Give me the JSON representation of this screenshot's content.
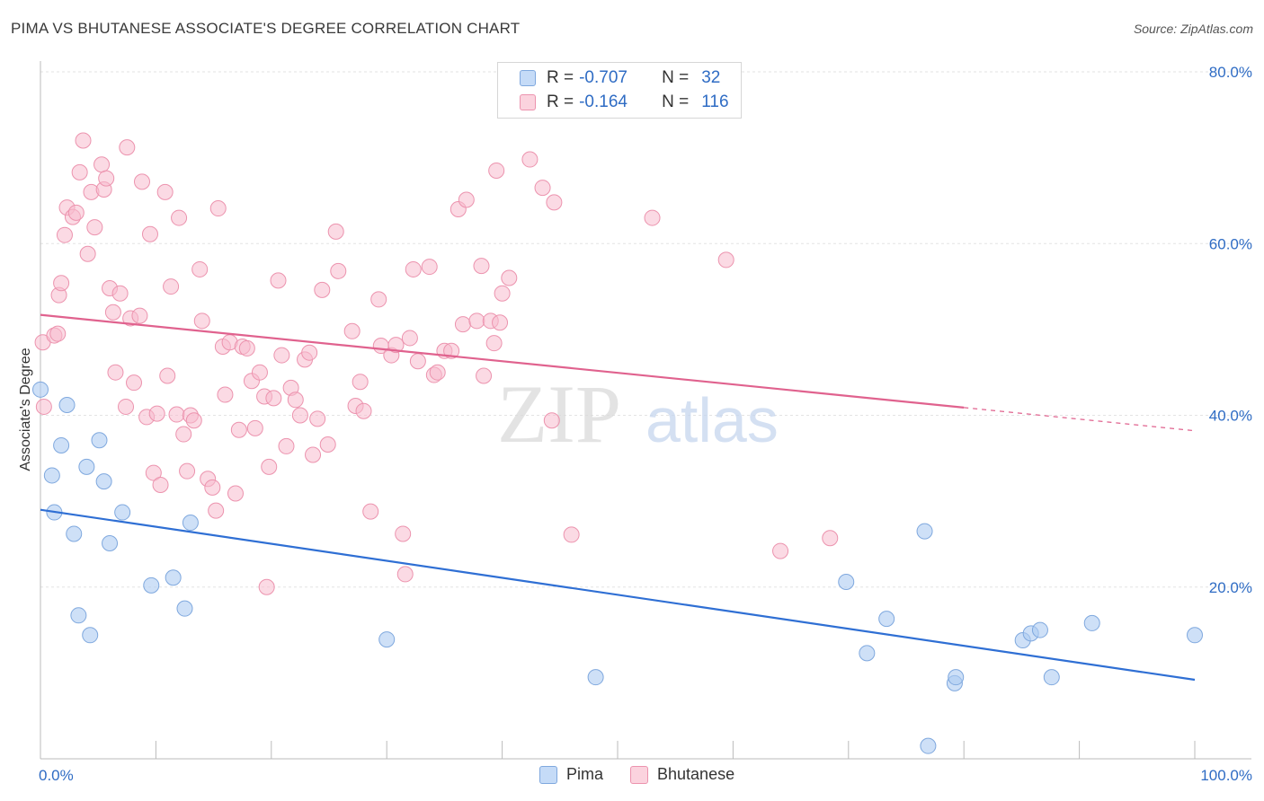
{
  "title": "PIMA VS BHUTANESE ASSOCIATE'S DEGREE CORRELATION CHART",
  "source": "Source: ZipAtlas.com",
  "watermark": {
    "zip": "ZIP",
    "atlas": "atlas"
  },
  "legend": {
    "rows": [
      {
        "r_label": "R =",
        "r_value": "-0.707",
        "n_label": "N =",
        "n_value": "32",
        "color": "#aecbf2"
      },
      {
        "r_label": "R =",
        "r_value": "-0.164",
        "n_label": "N =",
        "n_value": "116",
        "color": "#f7bccd"
      }
    ]
  },
  "bottom_legend": {
    "pima": "Pima",
    "bhutanese": "Bhutanese"
  },
  "colors": {
    "pima_fill": "#aecbf2",
    "pima_stroke": "#7fa8de",
    "pima_line": "#2f6fd4",
    "bhut_fill": "#f7bccd",
    "bhut_stroke": "#ec93ae",
    "bhut_line": "#e0628e",
    "grid": "#e3e3e3",
    "tick_label": "#2f6cc4"
  },
  "chart_data": {
    "type": "scatter",
    "title": "PIMA VS BHUTANESE ASSOCIATE'S DEGREE CORRELATION CHART",
    "xlabel": "",
    "ylabel": "Associate's Degree",
    "xlim": [
      0,
      100
    ],
    "ylim": [
      0,
      80
    ],
    "x_tick_labels": [
      "0.0%",
      "100.0%"
    ],
    "y_ticks": [
      20,
      40,
      60,
      80
    ],
    "y_tick_labels": [
      "20.0%",
      "40.0%",
      "60.0%",
      "80.0%"
    ],
    "grid": true,
    "series": [
      {
        "name": "Pima",
        "r": -0.707,
        "n": 32,
        "trend": {
          "x0": 0,
          "y0": 29.0,
          "x1": 100,
          "y1": 9.2
        },
        "points": [
          [
            0.0,
            43.0
          ],
          [
            1.0,
            33.0
          ],
          [
            1.2,
            28.7
          ],
          [
            1.8,
            36.5
          ],
          [
            2.3,
            41.2
          ],
          [
            2.9,
            26.2
          ],
          [
            3.3,
            16.7
          ],
          [
            4.0,
            34.0
          ],
          [
            4.3,
            14.4
          ],
          [
            5.1,
            37.1
          ],
          [
            5.5,
            32.3
          ],
          [
            6.0,
            25.1
          ],
          [
            7.1,
            28.7
          ],
          [
            9.6,
            20.2
          ],
          [
            11.5,
            21.1
          ],
          [
            12.5,
            17.5
          ],
          [
            13.0,
            27.5
          ],
          [
            30.0,
            13.9
          ],
          [
            48.1,
            9.5
          ],
          [
            69.8,
            20.6
          ],
          [
            71.6,
            12.3
          ],
          [
            73.3,
            16.3
          ],
          [
            76.6,
            26.5
          ],
          [
            76.9,
            1.5
          ],
          [
            79.2,
            8.8
          ],
          [
            79.3,
            9.5
          ],
          [
            85.1,
            13.8
          ],
          [
            85.8,
            14.6
          ],
          [
            86.6,
            15.0
          ],
          [
            87.6,
            9.5
          ],
          [
            91.1,
            15.8
          ],
          [
            100.0,
            14.4
          ]
        ]
      },
      {
        "name": "Bhutanese",
        "r": -0.164,
        "n": 116,
        "trend": {
          "x0": 0,
          "y0": 51.7,
          "x1": 80,
          "y1": 40.9,
          "dash_x1": 100,
          "dash_y1": 38.2
        },
        "points": [
          [
            0.2,
            48.5
          ],
          [
            0.3,
            41.0
          ],
          [
            1.2,
            49.3
          ],
          [
            1.5,
            49.5
          ],
          [
            1.6,
            54.0
          ],
          [
            1.8,
            55.4
          ],
          [
            2.1,
            61.0
          ],
          [
            2.3,
            64.2
          ],
          [
            2.8,
            63.1
          ],
          [
            3.1,
            63.6
          ],
          [
            3.4,
            68.3
          ],
          [
            3.7,
            72.0
          ],
          [
            4.1,
            58.8
          ],
          [
            4.4,
            66.0
          ],
          [
            4.7,
            61.9
          ],
          [
            5.3,
            69.2
          ],
          [
            5.5,
            66.3
          ],
          [
            5.7,
            67.6
          ],
          [
            6.0,
            54.8
          ],
          [
            6.3,
            52.0
          ],
          [
            6.5,
            45.0
          ],
          [
            6.9,
            54.2
          ],
          [
            7.4,
            41.0
          ],
          [
            7.5,
            71.2
          ],
          [
            7.8,
            51.3
          ],
          [
            8.1,
            43.8
          ],
          [
            8.6,
            51.6
          ],
          [
            8.8,
            67.2
          ],
          [
            9.2,
            39.8
          ],
          [
            9.5,
            61.1
          ],
          [
            9.8,
            33.3
          ],
          [
            10.1,
            40.2
          ],
          [
            10.4,
            31.9
          ],
          [
            10.8,
            66.0
          ],
          [
            11.0,
            44.6
          ],
          [
            11.3,
            55.0
          ],
          [
            11.8,
            40.1
          ],
          [
            12.0,
            63.0
          ],
          [
            12.4,
            37.8
          ],
          [
            12.7,
            33.5
          ],
          [
            13.0,
            40.0
          ],
          [
            13.3,
            39.4
          ],
          [
            13.8,
            57.0
          ],
          [
            14.0,
            51.0
          ],
          [
            14.5,
            32.6
          ],
          [
            14.9,
            31.6
          ],
          [
            15.2,
            28.9
          ],
          [
            15.4,
            64.1
          ],
          [
            15.8,
            48.0
          ],
          [
            16.0,
            42.4
          ],
          [
            16.4,
            48.5
          ],
          [
            16.9,
            30.9
          ],
          [
            17.2,
            38.3
          ],
          [
            17.5,
            48.0
          ],
          [
            17.9,
            47.8
          ],
          [
            18.3,
            44.0
          ],
          [
            18.6,
            38.5
          ],
          [
            19.0,
            45.0
          ],
          [
            19.4,
            42.2
          ],
          [
            19.6,
            20.0
          ],
          [
            19.8,
            34.0
          ],
          [
            20.2,
            42.0
          ],
          [
            20.6,
            55.7
          ],
          [
            20.9,
            47.0
          ],
          [
            21.3,
            36.4
          ],
          [
            21.7,
            43.2
          ],
          [
            22.1,
            41.8
          ],
          [
            22.5,
            40.0
          ],
          [
            22.9,
            46.5
          ],
          [
            23.3,
            47.3
          ],
          [
            23.6,
            35.4
          ],
          [
            24.0,
            39.6
          ],
          [
            24.4,
            54.6
          ],
          [
            24.9,
            36.6
          ],
          [
            25.8,
            56.8
          ],
          [
            25.6,
            61.4
          ],
          [
            27.0,
            49.8
          ],
          [
            27.3,
            41.1
          ],
          [
            27.7,
            43.9
          ],
          [
            28.0,
            40.5
          ],
          [
            28.6,
            28.8
          ],
          [
            29.5,
            48.1
          ],
          [
            29.3,
            53.5
          ],
          [
            30.4,
            47.0
          ],
          [
            30.8,
            48.2
          ],
          [
            31.4,
            26.2
          ],
          [
            31.6,
            21.5
          ],
          [
            32.0,
            49.0
          ],
          [
            32.3,
            57.0
          ],
          [
            32.7,
            46.3
          ],
          [
            33.7,
            57.3
          ],
          [
            34.1,
            44.7
          ],
          [
            34.4,
            45.0
          ],
          [
            35.0,
            47.5
          ],
          [
            35.6,
            47.5
          ],
          [
            36.2,
            64.0
          ],
          [
            36.6,
            50.6
          ],
          [
            36.9,
            65.1
          ],
          [
            37.8,
            51.0
          ],
          [
            38.2,
            57.4
          ],
          [
            38.4,
            44.6
          ],
          [
            39.0,
            51.0
          ],
          [
            39.3,
            48.4
          ],
          [
            39.5,
            68.5
          ],
          [
            39.8,
            50.8
          ],
          [
            40.0,
            54.2
          ],
          [
            40.6,
            56.0
          ],
          [
            42.4,
            69.8
          ],
          [
            43.5,
            66.5
          ],
          [
            44.5,
            64.8
          ],
          [
            44.3,
            39.4
          ],
          [
            46.0,
            26.1
          ],
          [
            53.0,
            63.0
          ],
          [
            59.4,
            58.1
          ],
          [
            64.1,
            24.2
          ],
          [
            68.4,
            25.7
          ]
        ]
      }
    ]
  }
}
